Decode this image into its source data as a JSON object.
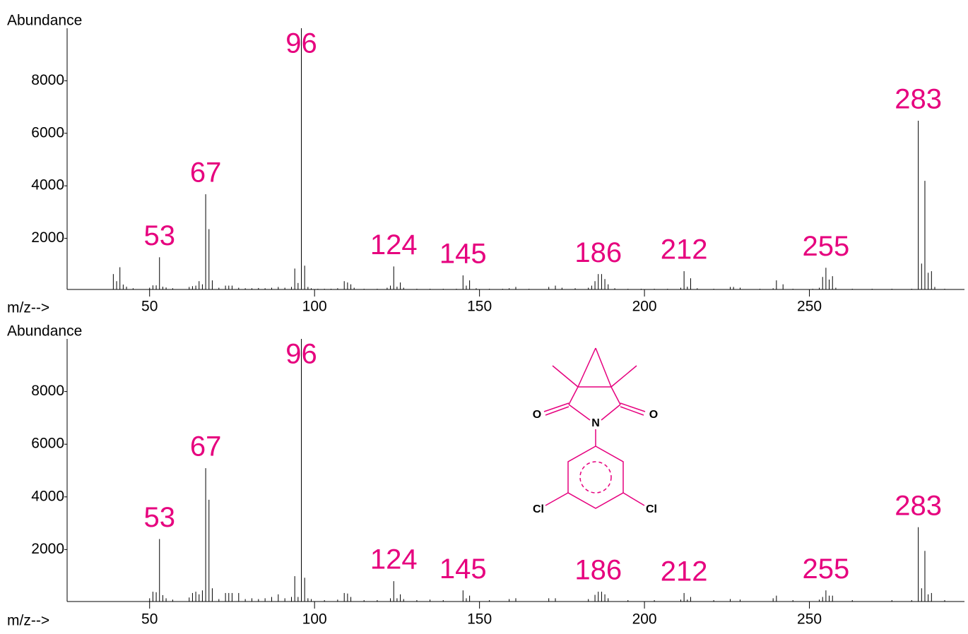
{
  "chart_data": [
    {
      "type": "bar",
      "y_label": "Abundance",
      "x_label": "m/z-->",
      "color": "#000000",
      "label_color": "#e6007e",
      "xlim": [
        25,
        297
      ],
      "ylim": [
        0,
        10000
      ],
      "xticks": [
        50,
        100,
        150,
        200,
        250
      ],
      "yticks": [
        2000,
        4000,
        6000,
        8000
      ],
      "x": [
        39,
        40,
        41,
        42,
        43,
        45,
        50,
        51,
        52,
        53,
        54,
        55,
        57,
        62,
        63,
        64,
        65,
        66,
        67,
        68,
        69,
        71,
        73,
        74,
        75,
        77,
        79,
        81,
        83,
        85,
        87,
        89,
        91,
        93,
        94,
        95,
        96,
        97,
        98,
        99,
        101,
        103,
        105,
        107,
        109,
        110,
        111,
        112,
        115,
        119,
        122,
        123,
        124,
        125,
        126,
        127,
        131,
        135,
        139,
        143,
        145,
        146,
        147,
        149,
        153,
        157,
        159,
        161,
        165,
        171,
        173,
        175,
        179,
        183,
        184,
        185,
        186,
        187,
        188,
        189,
        191,
        195,
        199,
        203,
        207,
        211,
        212,
        213,
        214,
        216,
        221,
        226,
        227,
        229,
        235,
        239,
        240,
        242,
        245,
        251,
        253,
        254,
        255,
        256,
        257,
        258,
        263,
        269,
        275,
        281,
        283,
        284,
        285,
        286,
        287,
        288,
        291
      ],
      "values": [
        640,
        370,
        900,
        240,
        160,
        100,
        120,
        210,
        210,
        1280,
        160,
        130,
        100,
        150,
        180,
        200,
        370,
        250,
        3680,
        2350,
        400,
        120,
        200,
        200,
        200,
        120,
        100,
        100,
        110,
        100,
        120,
        150,
        120,
        150,
        850,
        300,
        10000,
        960,
        150,
        100,
        80,
        80,
        80,
        100,
        370,
        320,
        250,
        120,
        80,
        80,
        120,
        200,
        930,
        160,
        320,
        120,
        80,
        80,
        80,
        80,
        590,
        200,
        400,
        100,
        80,
        80,
        100,
        150,
        80,
        150,
        200,
        120,
        100,
        120,
        200,
        370,
        640,
        640,
        450,
        250,
        100,
        80,
        80,
        80,
        80,
        120,
        750,
        160,
        480,
        100,
        80,
        150,
        150,
        120,
        80,
        100,
        400,
        250,
        80,
        80,
        120,
        530,
        880,
        430,
        560,
        120,
        80,
        80,
        80,
        80,
        6480,
        1040,
        4190,
        690,
        750,
        150,
        80
      ],
      "peak_labels": [
        53,
        67,
        96,
        124,
        145,
        186,
        212,
        255,
        283
      ]
    },
    {
      "type": "bar",
      "y_label": "Abundance",
      "x_label": "m/z-->",
      "color": "#000000",
      "label_color": "#e6007e",
      "xlim": [
        25,
        297
      ],
      "ylim": [
        0,
        10000
      ],
      "xticks": [
        50,
        100,
        150,
        200,
        250
      ],
      "yticks": [
        2000,
        4000,
        6000,
        8000
      ],
      "x": [
        50,
        51,
        52,
        53,
        54,
        55,
        57,
        62,
        63,
        64,
        65,
        66,
        67,
        68,
        69,
        71,
        73,
        74,
        75,
        77,
        79,
        81,
        83,
        85,
        87,
        89,
        91,
        93,
        94,
        95,
        96,
        97,
        98,
        99,
        103,
        107,
        109,
        110,
        111,
        115,
        119,
        123,
        124,
        125,
        126,
        127,
        131,
        135,
        139,
        145,
        146,
        147,
        153,
        159,
        161,
        171,
        173,
        183,
        185,
        186,
        187,
        188,
        189,
        195,
        203,
        211,
        212,
        213,
        214,
        221,
        226,
        229,
        239,
        240,
        245,
        253,
        254,
        255,
        256,
        257,
        263,
        275,
        281,
        283,
        284,
        285,
        286,
        287,
        291
      ],
      "values": [
        150,
        400,
        380,
        2400,
        270,
        150,
        100,
        180,
        350,
        400,
        300,
        450,
        5090,
        3890,
        530,
        120,
        350,
        350,
        350,
        350,
        120,
        150,
        120,
        150,
        200,
        300,
        150,
        200,
        990,
        200,
        10000,
        930,
        150,
        120,
        80,
        100,
        350,
        330,
        200,
        80,
        80,
        150,
        800,
        150,
        300,
        120,
        80,
        100,
        80,
        450,
        150,
        250,
        80,
        120,
        150,
        150,
        150,
        120,
        280,
        400,
        400,
        300,
        150,
        80,
        80,
        100,
        350,
        100,
        200,
        80,
        120,
        100,
        150,
        250,
        80,
        100,
        200,
        450,
        250,
        250,
        80,
        80,
        80,
        2850,
        530,
        1950,
        300,
        350,
        80
      ],
      "peak_labels": [
        53,
        67,
        96,
        124,
        145,
        186,
        212,
        255,
        283
      ]
    }
  ],
  "structure": {
    "atoms": [
      "O",
      "O",
      "N",
      "Cl",
      "Cl"
    ]
  }
}
